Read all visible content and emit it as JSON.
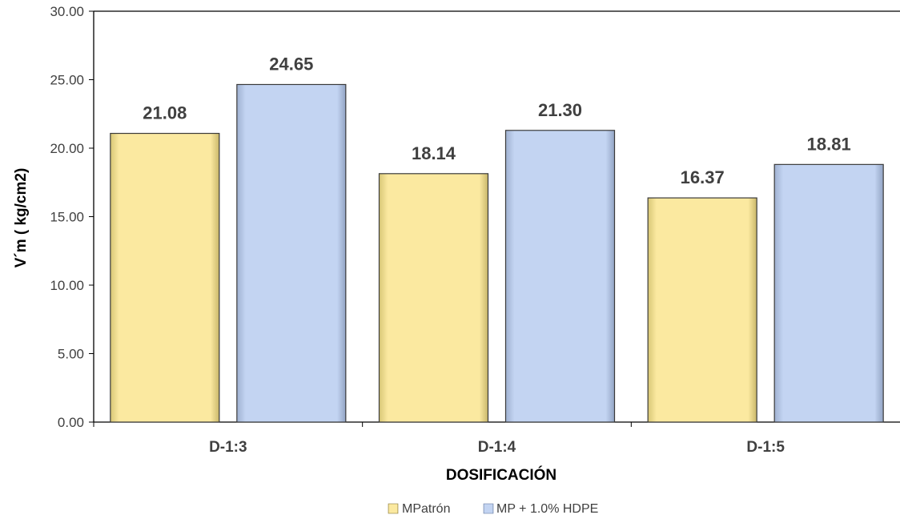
{
  "chart_data": {
    "type": "bar",
    "categories": [
      "D-1:3",
      "D-1:4",
      "D-1:5"
    ],
    "series": [
      {
        "name": "MPatrón",
        "values": [
          21.08,
          18.14,
          16.37
        ],
        "color": "#FBE9A0",
        "value_labels": [
          "21.08",
          "18.14",
          "16.37"
        ]
      },
      {
        "name": "MP + 1.0% HDPE",
        "values": [
          24.65,
          21.3,
          18.81
        ],
        "color": "#C3D4F2",
        "value_labels": [
          "24.65",
          "21.30",
          "18.81"
        ]
      }
    ],
    "xlabel": "DOSIFICACIÓN",
    "ylabel": "V´m ( kg/cm2)",
    "ylim": [
      0,
      30
    ],
    "yticks": [
      "0.00",
      "5.00",
      "10.00",
      "15.00",
      "20.00",
      "25.00",
      "30.00"
    ],
    "grid": false,
    "legend_position": "bottom"
  }
}
